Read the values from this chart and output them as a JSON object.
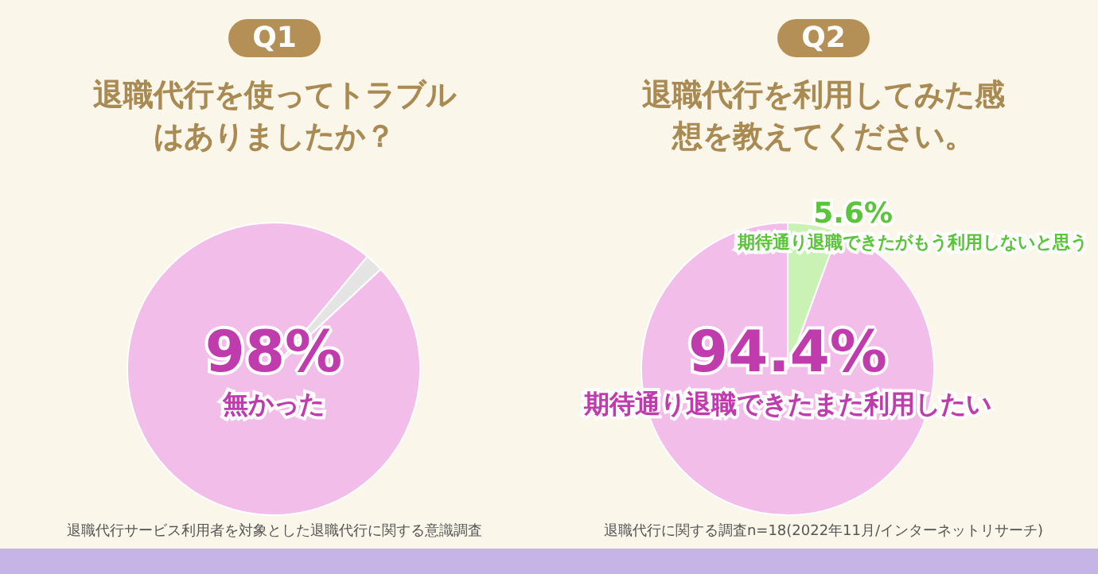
{
  "chart_data": [
    {
      "type": "pie",
      "subtitle": "Q1",
      "title": "退職代行を使ってトラブルはありましたか？",
      "categories": [
        "無かった",
        null
      ],
      "values": [
        98,
        2
      ],
      "colors": [
        "#f2bde9",
        "#e4e4e4"
      ],
      "value_labels": [
        "98%",
        null
      ],
      "annotations": [
        "退職代行サービス利用者を対象とした退職代行に関する意識調査"
      ]
    },
    {
      "type": "pie",
      "subtitle": "Q2",
      "title": "退職代行を利用してみた感想を教えてください。",
      "categories": [
        "期待通り退職できたまた利用したい",
        "期待通り退職できたがもう利用しないと思う"
      ],
      "values": [
        94.4,
        5.6
      ],
      "colors": [
        "#f2bde9",
        "#c9f2b4"
      ],
      "value_labels": [
        "94.4%",
        "5.6%"
      ],
      "annotations": [
        "退職代行に関する調査n=18(2022年11月/インターネットリサーチ)"
      ]
    }
  ]
}
